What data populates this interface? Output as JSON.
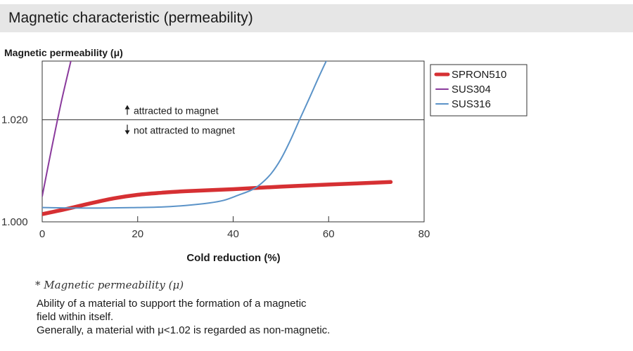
{
  "header": {
    "title": "Magnetic characteristic (permeability)"
  },
  "chart_data": {
    "type": "line",
    "title": "",
    "ylabel": "Magnetic permeability (μ)",
    "xlabel": "Cold reduction (%)",
    "xlim": [
      0,
      80
    ],
    "ylim": [
      1.0,
      1.0315
    ],
    "x_ticks": [
      0,
      20,
      40,
      60,
      80
    ],
    "x_tick_labels": [
      "0",
      "20",
      "40",
      "60",
      "80"
    ],
    "y_ticks": [
      1.0,
      1.02
    ],
    "y_tick_labels": [
      "1.000",
      "1.020"
    ],
    "grid": false,
    "legend_position": "outside-top-right",
    "threshold": {
      "y": 1.02,
      "label_above": "attracted to magnet",
      "label_below": "not attracted to magnet"
    },
    "series": [
      {
        "name": "SPRON510",
        "color": "#d63033",
        "x": [
          0,
          5,
          10,
          15,
          20,
          25,
          30,
          40,
          50,
          60,
          73
        ],
        "y": [
          1.0015,
          1.0025,
          1.0036,
          1.0046,
          1.0053,
          1.0057,
          1.006,
          1.0064,
          1.0069,
          1.0073,
          1.0078
        ]
      },
      {
        "name": "SUS304",
        "color": "#8a3a9c",
        "x": [
          0,
          2,
          4,
          6
        ],
        "y": [
          1.005,
          1.0145,
          1.0235,
          1.0315
        ]
      },
      {
        "name": "SUS316",
        "color": "#5b93c8",
        "x": [
          0,
          10,
          20,
          25,
          30,
          35,
          38,
          41,
          44,
          46,
          48,
          50,
          52,
          54,
          56,
          58,
          60
        ],
        "y": [
          1.0028,
          1.0027,
          1.0028,
          1.0029,
          1.0032,
          1.0037,
          1.0042,
          1.0052,
          1.0063,
          1.0076,
          1.0095,
          1.0123,
          1.016,
          1.0202,
          1.0243,
          1.0285,
          1.0325
        ]
      }
    ]
  },
  "note": {
    "heading": "* Magnetic permeability (μ)",
    "line1": "Ability of a material to support the formation of a magnetic",
    "line2": "field within itself.",
    "line3": "Generally, a material with μ<1.02 is regarded as non-magnetic."
  }
}
